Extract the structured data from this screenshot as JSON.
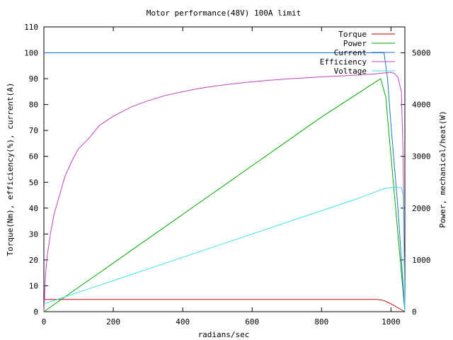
{
  "chart_data": {
    "type": "line",
    "title": "Motor performance(48V) 100A limit",
    "xlabel": "radians/sec",
    "ylabel": "Torque(Nm), efficiency(%), current(A)",
    "y2label": "Power, mechanical/heat(W)",
    "xlim": [
      0,
      1040
    ],
    "ylim": [
      0,
      110
    ],
    "y2lim": [
      0,
      5500
    ],
    "x_ticks": [
      "0",
      "200",
      "400",
      "600",
      "800",
      "1000"
    ],
    "y_ticks": [
      "0",
      "10",
      "20",
      "30",
      "40",
      "50",
      "60",
      "70",
      "80",
      "90",
      "100",
      "110"
    ],
    "y2_ticks": [
      "0",
      "1000",
      "2000",
      "3000",
      "4000",
      "5000"
    ],
    "legend_position": "top-right",
    "grid": false,
    "series": [
      {
        "name": "Torque",
        "color": "#cc0000",
        "axis": "y",
        "points": [
          [
            0,
            4.7
          ],
          [
            100,
            4.7
          ],
          [
            500,
            4.7
          ],
          [
            960,
            4.7
          ],
          [
            980,
            4.3
          ],
          [
            1000,
            3.0
          ],
          [
            1020,
            1.5
          ],
          [
            1040,
            0
          ]
        ]
      },
      {
        "name": "Power",
        "color": "#00aa00",
        "axis": "y2",
        "points": [
          [
            0,
            0
          ],
          [
            100,
            470
          ],
          [
            200,
            940
          ],
          [
            400,
            1880
          ],
          [
            600,
            2820
          ],
          [
            800,
            3760
          ],
          [
            970,
            4500
          ],
          [
            985,
            4150
          ],
          [
            1000,
            3000
          ],
          [
            1020,
            1500
          ],
          [
            1040,
            0
          ]
        ]
      },
      {
        "name": "Current",
        "color": "#1e73c8",
        "axis": "y",
        "points": [
          [
            0,
            100
          ],
          [
            980,
            100
          ],
          [
            990,
            90
          ],
          [
            1000,
            72
          ],
          [
            1020,
            40
          ],
          [
            1040,
            0
          ]
        ]
      },
      {
        "name": "Efficiency",
        "color": "#c040c0",
        "axis": "y",
        "points": [
          [
            0,
            0
          ],
          [
            5,
            15
          ],
          [
            10,
            22
          ],
          [
            20,
            31
          ],
          [
            30,
            38
          ],
          [
            45,
            45
          ],
          [
            60,
            52
          ],
          [
            80,
            58
          ],
          [
            100,
            63
          ],
          [
            130,
            67
          ],
          [
            160,
            72
          ],
          [
            200,
            75.5
          ],
          [
            250,
            79
          ],
          [
            300,
            81.5
          ],
          [
            350,
            83.5
          ],
          [
            400,
            85
          ],
          [
            450,
            86.3
          ],
          [
            500,
            87.3
          ],
          [
            550,
            88.1
          ],
          [
            600,
            88.8
          ],
          [
            650,
            89.4
          ],
          [
            700,
            89.9
          ],
          [
            750,
            90.3
          ],
          [
            800,
            90.7
          ],
          [
            850,
            91.0
          ],
          [
            900,
            91.4
          ],
          [
            950,
            91.8
          ],
          [
            1000,
            92.5
          ],
          [
            1010,
            92.0
          ],
          [
            1020,
            90.5
          ],
          [
            1030,
            85
          ],
          [
            1035,
            60
          ],
          [
            1040,
            2
          ]
        ]
      },
      {
        "name": "Voltage",
        "color": "#40e0e0",
        "axis": "y",
        "points": [
          [
            0,
            3
          ],
          [
            100,
            7.5
          ],
          [
            200,
            12
          ],
          [
            300,
            16.5
          ],
          [
            400,
            21
          ],
          [
            500,
            25.5
          ],
          [
            600,
            30
          ],
          [
            700,
            34.5
          ],
          [
            800,
            39
          ],
          [
            900,
            43.5
          ],
          [
            980,
            47.5
          ],
          [
            1000,
            48
          ],
          [
            1020,
            48
          ],
          [
            1030,
            48
          ],
          [
            1035,
            45
          ],
          [
            1040,
            0
          ]
        ]
      }
    ]
  }
}
